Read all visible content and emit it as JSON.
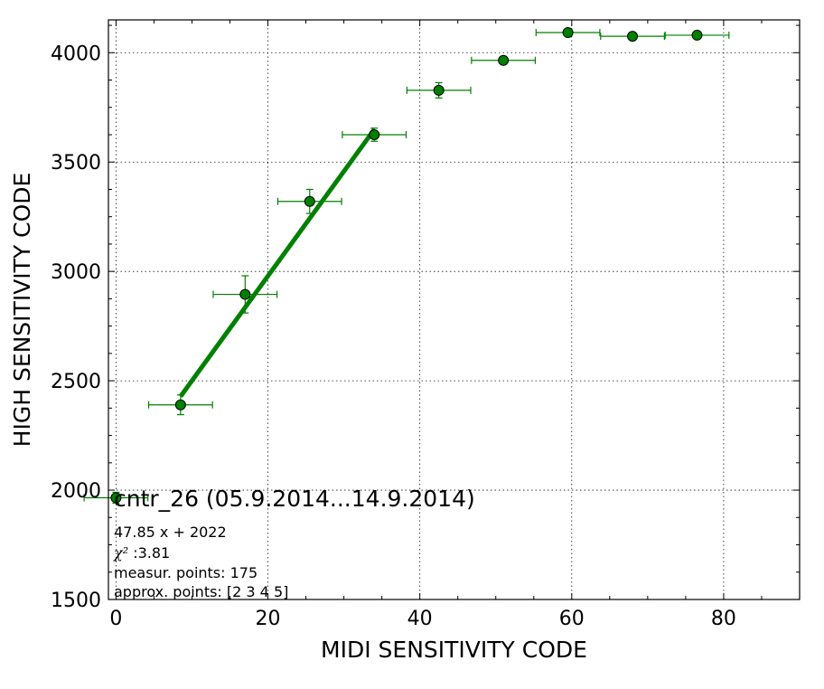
{
  "chart_data": {
    "type": "scatter",
    "xlabel": "MIDI SENSITIVITY CODE",
    "ylabel": "HIGH SENSITIVITY CODE",
    "xlim": [
      -1,
      90
    ],
    "ylim": [
      1500,
      4150
    ],
    "x_ticks": [
      0,
      20,
      40,
      60,
      80
    ],
    "x_tick_labels": [
      "0",
      "20",
      "40",
      "60",
      "80"
    ],
    "y_ticks": [
      1500,
      2000,
      2500,
      3000,
      3500,
      4000
    ],
    "y_tick_labels": [
      "1500",
      "2000",
      "2500",
      "3000",
      "3500",
      "4000"
    ],
    "grid": true,
    "series": [
      {
        "name": "cntr_26 (05.9.2014...14.9.2014)",
        "color": "#008000",
        "marker": "circle",
        "points": [
          {
            "x": 0.0,
            "y": 1965,
            "xerr": 4.2,
            "yerr": 25
          },
          {
            "x": 8.5,
            "y": 2390,
            "xerr": 4.2,
            "yerr": 45
          },
          {
            "x": 17.0,
            "y": 2895,
            "xerr": 4.2,
            "yerr": 85
          },
          {
            "x": 25.5,
            "y": 3320,
            "xerr": 4.2,
            "yerr": 55
          },
          {
            "x": 34.0,
            "y": 3625,
            "xerr": 4.2,
            "yerr": 30
          },
          {
            "x": 42.5,
            "y": 3828,
            "xerr": 4.2,
            "yerr": 35
          },
          {
            "x": 51.0,
            "y": 3965,
            "xerr": 4.2,
            "yerr": 15
          },
          {
            "x": 59.5,
            "y": 4092,
            "xerr": 4.2,
            "yerr": 10
          },
          {
            "x": 68.0,
            "y": 4075,
            "xerr": 4.2,
            "yerr": 10
          },
          {
            "x": 76.5,
            "y": 4080,
            "xerr": 4.2,
            "yerr": 10
          }
        ]
      }
    ],
    "fit_line": {
      "color": "#008000",
      "slope": 47.85,
      "intercept": 2022,
      "x_range": [
        8.5,
        34.0
      ]
    },
    "legend": {
      "label": "cntr_26 (05.9.2014...14.9.2014)",
      "placement": "lower-left"
    },
    "annotations": {
      "equation": "47.85 x + 2022",
      "chi2_symbol": "χ²",
      "chi2_value": " :3.81",
      "measur_points": "measur. points: 175",
      "approx_points": "approx. points: [2 3 4 5]"
    }
  }
}
